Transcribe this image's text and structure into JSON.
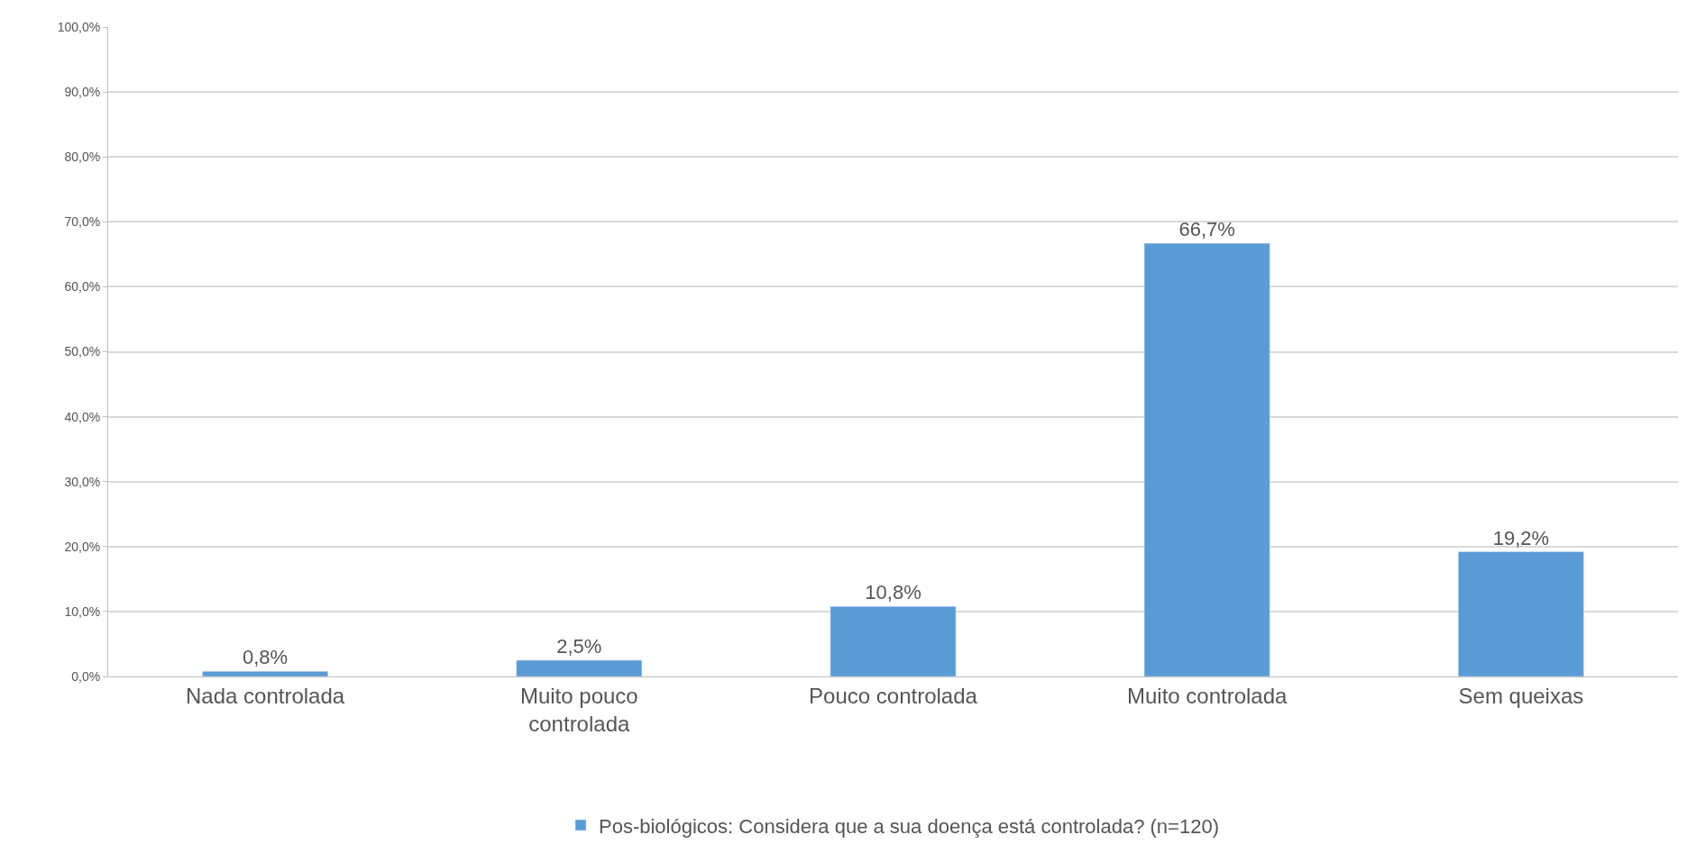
{
  "chart_data": {
    "type": "bar",
    "categories": [
      "Nada controlada",
      "Muito pouco controlada",
      "Pouco controlada",
      "Muito controlada",
      "Sem queixas"
    ],
    "series": [
      {
        "name": "Pos-biológicos: Considera que a sua doença está controlada? (n=120)",
        "color": "#5b9bd5",
        "values": [
          0.8,
          2.5,
          10.8,
          66.7,
          19.2
        ],
        "value_labels": [
          "0,8%",
          "2,5%",
          "10,8%",
          "66,7%",
          "19,2%"
        ]
      }
    ],
    "ylim": [
      0,
      100
    ],
    "yticks": [
      {
        "value": 0,
        "label": "0,0%"
      },
      {
        "value": 10,
        "label": "10,0%"
      },
      {
        "value": 20,
        "label": "20,0%"
      },
      {
        "value": 30,
        "label": "30,0%"
      },
      {
        "value": 40,
        "label": "40,0%"
      },
      {
        "value": 50,
        "label": "50,0%"
      },
      {
        "value": 60,
        "label": "60,0%"
      },
      {
        "value": 70,
        "label": "70,0%"
      },
      {
        "value": 80,
        "label": "80,0%"
      },
      {
        "value": 90,
        "label": "90,0%"
      },
      {
        "value": 100,
        "label": "100,0%"
      }
    ],
    "grid": "y",
    "legend": "bottom"
  }
}
